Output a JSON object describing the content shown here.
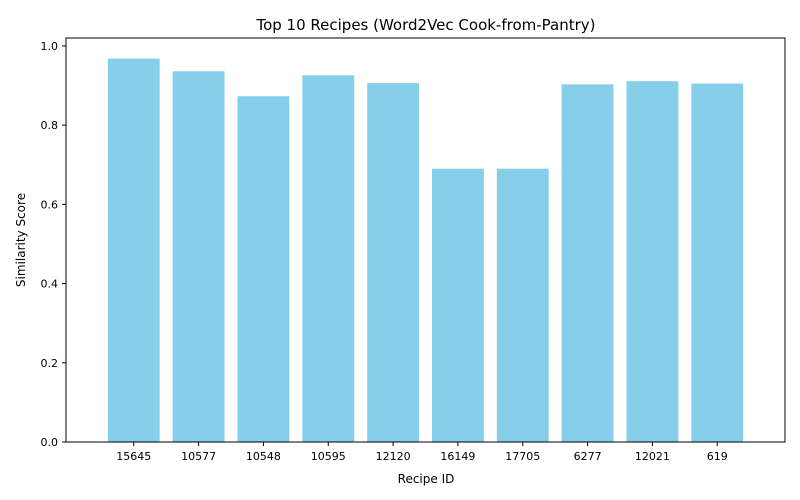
{
  "chart_data": {
    "type": "bar",
    "title": "Top 10 Recipes (Word2Vec Cook-from-Pantry)",
    "xlabel": "Recipe ID",
    "ylabel": "Similarity Score",
    "categories": [
      "15645",
      "10577",
      "10548",
      "10595",
      "12120",
      "16149",
      "17705",
      "6277",
      "12021",
      "619"
    ],
    "values": [
      0.968,
      0.936,
      0.873,
      0.926,
      0.906,
      0.69,
      0.69,
      0.903,
      0.911,
      0.905
    ],
    "ylim": [
      0,
      1.02
    ],
    "yticks": [
      0.0,
      0.2,
      0.4,
      0.6,
      0.8,
      1.0
    ],
    "ytick_labels": [
      "0.0",
      "0.2",
      "0.4",
      "0.6",
      "0.8",
      "1.0"
    ],
    "grid": false,
    "bar_color": "#87ceeb"
  }
}
